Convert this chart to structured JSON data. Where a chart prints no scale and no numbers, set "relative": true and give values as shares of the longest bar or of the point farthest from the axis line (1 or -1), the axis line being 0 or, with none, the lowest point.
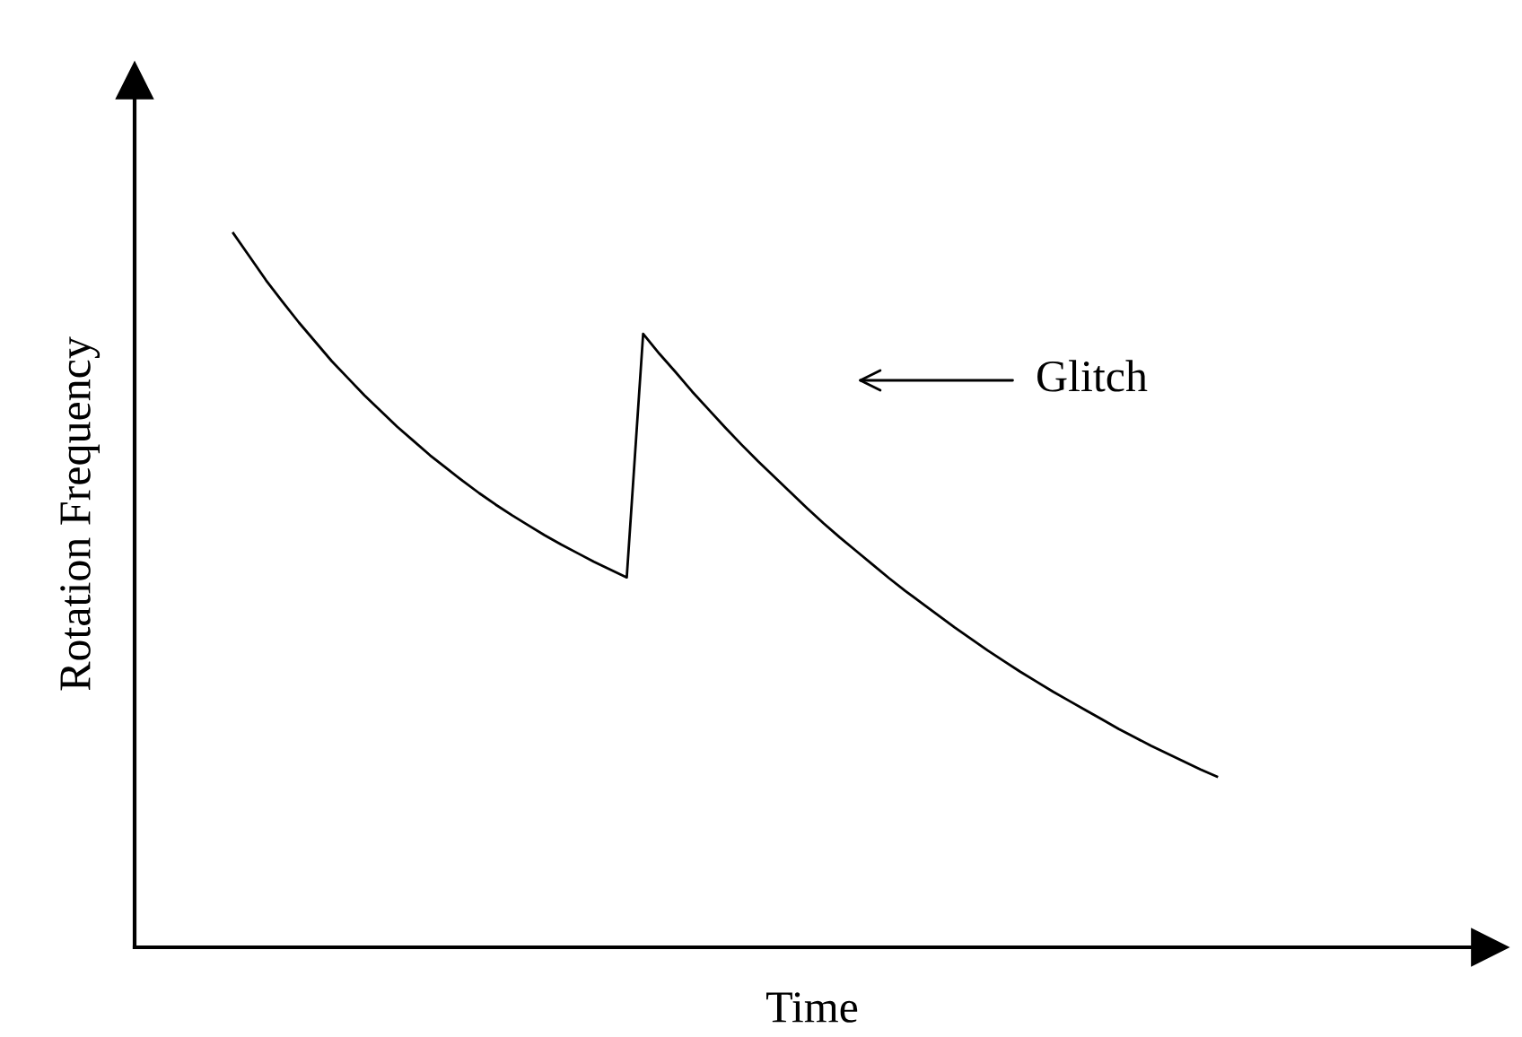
{
  "chart_data": {
    "type": "line",
    "relative": true,
    "xlabel": "Time",
    "ylabel": "Rotation Frequency",
    "annotations": [
      "Glitch"
    ],
    "color": "#000000",
    "grid": false,
    "legend": false,
    "marker": "none",
    "line_style": "solid",
    "categories": [
      null,
      null,
      null,
      null,
      null,
      null,
      null,
      null,
      null,
      null,
      null,
      null,
      null,
      null,
      null,
      null,
      null,
      null,
      null,
      null,
      null,
      null,
      null,
      null,
      null,
      null,
      null,
      null,
      null,
      null,
      null,
      null,
      null,
      null,
      null,
      null,
      null,
      null,
      null,
      null,
      null,
      null,
      null,
      null,
      null,
      null,
      null,
      null,
      null,
      null,
      null,
      null,
      null,
      null,
      null,
      null,
      null,
      null,
      null,
      null,
      null
    ],
    "values": [
      1.0,
      0.967,
      0.934,
      0.904,
      0.875,
      0.848,
      0.821,
      0.797,
      0.773,
      0.751,
      0.729,
      0.709,
      0.689,
      0.671,
      0.653,
      0.636,
      0.62,
      0.605,
      0.591,
      0.577,
      0.564,
      0.552,
      0.54,
      0.529,
      0.518,
      0.859,
      0.831,
      0.805,
      0.778,
      0.753,
      0.728,
      0.704,
      0.681,
      0.659,
      0.637,
      0.615,
      0.594,
      0.574,
      0.555,
      0.536,
      0.517,
      0.499,
      0.482,
      0.465,
      0.448,
      0.432,
      0.416,
      0.401,
      0.386,
      0.372,
      0.358,
      0.345,
      0.332,
      0.319,
      0.306,
      0.294,
      0.282,
      0.271,
      0.26,
      0.249,
      0.239
    ]
  }
}
